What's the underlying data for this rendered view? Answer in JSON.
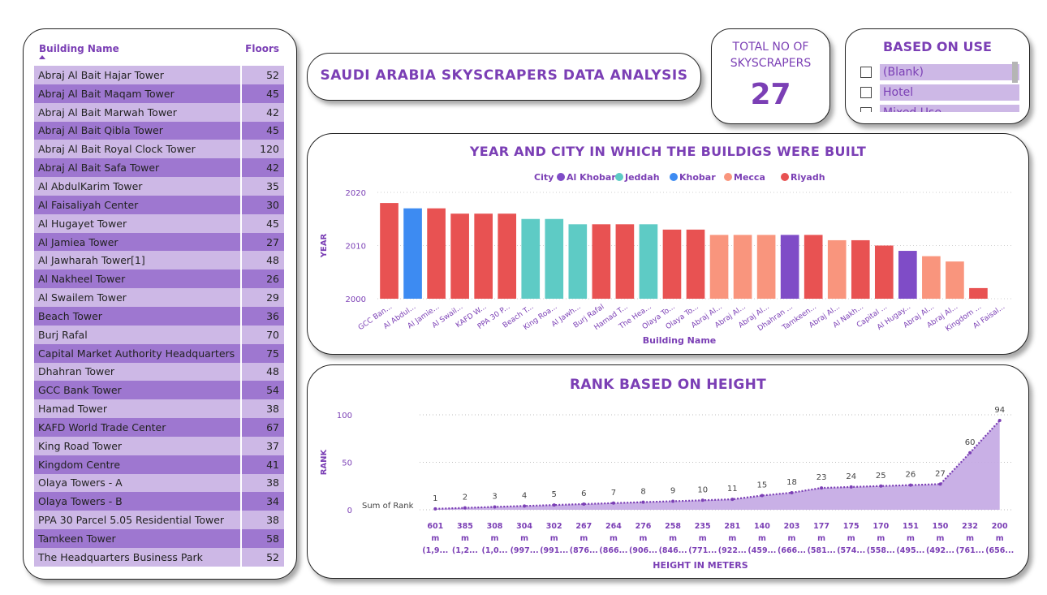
{
  "table": {
    "header_name": "Building Name",
    "header_floors": "Floors",
    "rows": [
      {
        "name": "Abraj Al Bait Hajar Tower",
        "floors": "52"
      },
      {
        "name": "Abraj Al Bait Maqam Tower",
        "floors": "45"
      },
      {
        "name": "Abraj Al Bait Marwah Tower",
        "floors": "42"
      },
      {
        "name": "Abraj Al Bait Qibla Tower",
        "floors": "45"
      },
      {
        "name": "Abraj Al Bait Royal Clock Tower",
        "floors": "120"
      },
      {
        "name": "Abraj Al Bait Safa Tower",
        "floors": "42"
      },
      {
        "name": "Al AbdulKarim Tower",
        "floors": "35"
      },
      {
        "name": "Al Faisaliyah Center",
        "floors": "30"
      },
      {
        "name": "Al Hugayet Tower",
        "floors": "45"
      },
      {
        "name": "Al Jamiea Tower",
        "floors": "27"
      },
      {
        "name": "Al Jawharah Tower[1]",
        "floors": "48"
      },
      {
        "name": "Al Nakheel Tower",
        "floors": "26"
      },
      {
        "name": "Al Swailem Tower",
        "floors": "29"
      },
      {
        "name": "Beach Tower",
        "floors": "36"
      },
      {
        "name": "Burj Rafal",
        "floors": "70"
      },
      {
        "name": "Capital Market Authority Headquarters",
        "floors": "75"
      },
      {
        "name": "Dhahran Tower",
        "floors": "48"
      },
      {
        "name": "GCC Bank Tower",
        "floors": "54"
      },
      {
        "name": "Hamad Tower",
        "floors": "38"
      },
      {
        "name": "KAFD World Trade Center",
        "floors": "67"
      },
      {
        "name": "King Road Tower",
        "floors": "37"
      },
      {
        "name": "Kingdom Centre",
        "floors": "41"
      },
      {
        "name": "Olaya Towers - A",
        "floors": "38"
      },
      {
        "name": "Olaya Towers - B",
        "floors": "34"
      },
      {
        "name": "PPA 30 Parcel 5.05 Residential Tower",
        "floors": "38"
      },
      {
        "name": "Tamkeen Tower",
        "floors": "58"
      },
      {
        "name": "The Headquarters Business Park",
        "floors": "52"
      }
    ]
  },
  "title": "SAUDI ARABIA SKYSCRAPERS DATA ANALYSIS",
  "kpi": {
    "label_line1": "TOTAL NO OF",
    "label_line2": "SKYSCRAPERS",
    "value": "27"
  },
  "slicer": {
    "title": "BASED ON USE",
    "items": [
      "(Blank)",
      "Hotel",
      "Mixed Use"
    ]
  },
  "colors": {
    "accent": "#7B3FB5",
    "row_light": "#CDB8E6",
    "row_dark": "#9E77D0",
    "area_fill": "#C3A7E3"
  },
  "chart_data": [
    {
      "type": "bar",
      "title": "YEAR AND CITY IN WHICH THE BUILDIGS WERE BUILT",
      "xlabel": "Building Name",
      "ylabel": "YEAR",
      "legend_title": "City",
      "legend_position": "top-center",
      "grid": true,
      "ylim": [
        2000,
        2020
      ],
      "yticks": [
        2000,
        2010,
        2020
      ],
      "series": [
        {
          "name": "Al Khobar",
          "color": "#7F4CC7"
        },
        {
          "name": "Jeddah",
          "color": "#5ECBC5"
        },
        {
          "name": "Khobar",
          "color": "#3D8BF2"
        },
        {
          "name": "Mecca",
          "color": "#F9957D"
        },
        {
          "name": "Riyadh",
          "color": "#E85252"
        }
      ],
      "categories": [
        "GCC Ban...",
        "Al Abdul...",
        "Al Jamie...",
        "Al Swail...",
        "KAFD W...",
        "PPA 30 P...",
        "Beach T...",
        "King Roa...",
        "Al Jawh...",
        "Burj Rafal",
        "Hamad T...",
        "The Hea...",
        "Olaya To...",
        "Olaya To...",
        "Abraj Al...",
        "Abraj Al...",
        "Abraj Al...",
        "Dhahran ...",
        "Tamkeen...",
        "Abraj Al...",
        "Al Nakh...",
        "Capital ...",
        "Al Hugay...",
        "Abraj Al...",
        "Abraj Al...",
        "Kingdom ...",
        "Al Faisal..."
      ],
      "values": [
        2018,
        2017,
        2017,
        2016,
        2016,
        2016,
        2015,
        2015,
        2014,
        2014,
        2014,
        2014,
        2013,
        2013,
        2012,
        2012,
        2012,
        2012,
        2012,
        2011,
        2011,
        2010,
        2009,
        2008,
        2007,
        2002,
        2000
      ],
      "city": [
        "Riyadh",
        "Khobar",
        "Riyadh",
        "Riyadh",
        "Riyadh",
        "Riyadh",
        "Jeddah",
        "Jeddah",
        "Jeddah",
        "Riyadh",
        "Riyadh",
        "Jeddah",
        "Riyadh",
        "Riyadh",
        "Mecca",
        "Mecca",
        "Mecca",
        "Al Khobar",
        "Riyadh",
        "Mecca",
        "Riyadh",
        "Riyadh",
        "Al Khobar",
        "Mecca",
        "Mecca",
        "Riyadh",
        "Riyadh"
      ]
    },
    {
      "type": "area",
      "title": "RANK BASED ON HEIGHT",
      "xlabel": "HEIGHT IN METERS",
      "ylabel": "RANK",
      "series_label": "Sum of Rank",
      "grid": true,
      "ylim": [
        0,
        100
      ],
      "yticks": [
        0,
        50,
        100
      ],
      "categories": [
        [
          "601",
          "m",
          "(1,9..."
        ],
        [
          "385",
          "m",
          "(1,2..."
        ],
        [
          "308",
          "m",
          "(1,0..."
        ],
        [
          "304",
          "m",
          "(997..."
        ],
        [
          "302",
          "m",
          "(991..."
        ],
        [
          "267",
          "m",
          "(876..."
        ],
        [
          "264",
          "m",
          "(866..."
        ],
        [
          "276",
          "m",
          "(906..."
        ],
        [
          "258",
          "m",
          "(846..."
        ],
        [
          "235",
          "m",
          "(771..."
        ],
        [
          "281",
          "m",
          "(922..."
        ],
        [
          "140",
          "m",
          "(459..."
        ],
        [
          "203",
          "m",
          "(666..."
        ],
        [
          "177",
          "m",
          "(581..."
        ],
        [
          "175",
          "m",
          "(574..."
        ],
        [
          "170",
          "m",
          "(558..."
        ],
        [
          "151",
          "m",
          "(495..."
        ],
        [
          "150",
          "m",
          "(492..."
        ],
        [
          "232",
          "m",
          "(761..."
        ],
        [
          "200",
          "m",
          "(656..."
        ]
      ],
      "values": [
        1,
        2,
        3,
        4,
        5,
        6,
        7,
        8,
        9,
        10,
        11,
        15,
        18,
        23,
        24,
        25,
        26,
        27,
        60,
        94
      ]
    }
  ]
}
